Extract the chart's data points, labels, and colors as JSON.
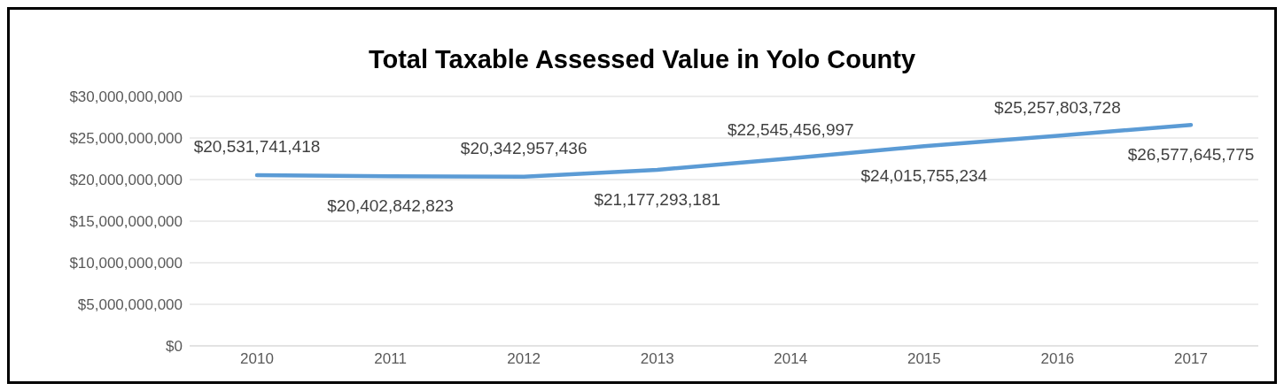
{
  "chart_data": {
    "type": "line",
    "title": "Total Taxable Assessed Value in Yolo County",
    "categories": [
      "2010",
      "2011",
      "2012",
      "2013",
      "2014",
      "2015",
      "2016",
      "2017"
    ],
    "series": [
      {
        "color": "#5b9bd5",
        "values": [
          20531741418,
          20402842823,
          20342957436,
          21177293181,
          22545456997,
          24015755234,
          25257803728,
          26577645775
        ],
        "value_labels": [
          "$20,531,741,418",
          "$20,402,842,823",
          "$20,342,957,436",
          "$21,177,293,181",
          "$22,545,456,997",
          "$24,015,755,234",
          "$25,257,803,728",
          "$26,577,645,775"
        ]
      }
    ],
    "ylim": [
      0,
      30000000000
    ],
    "yticks": [
      {
        "value": 0,
        "label": "$0"
      },
      {
        "value": 5000000000,
        "label": "$5,000,000,000"
      },
      {
        "value": 10000000000,
        "label": "$10,000,000,000"
      },
      {
        "value": 15000000000,
        "label": "$15,000,000,000"
      },
      {
        "value": 20000000000,
        "label": "$20,000,000,000"
      },
      {
        "value": 25000000000,
        "label": "$25,000,000,000"
      },
      {
        "value": 30000000000,
        "label": "$30,000,000,000"
      }
    ],
    "grid": "y",
    "legend": false,
    "marker": "none",
    "line_style": "solid"
  }
}
